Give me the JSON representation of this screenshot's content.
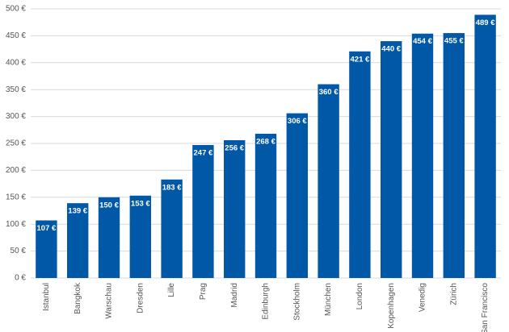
{
  "chart_data": {
    "type": "bar",
    "categories": [
      "Istanbul",
      "Bangkok",
      "Warschau",
      "Dresden",
      "Lille",
      "Prag",
      "Madrid",
      "Edinburgh",
      "Stockholm",
      "München",
      "London",
      "Kopenhagen",
      "Venedig",
      "Zürich",
      "San Francisco"
    ],
    "values": [
      107,
      139,
      150,
      153,
      183,
      247,
      256,
      268,
      306,
      360,
      421,
      440,
      454,
      455,
      489
    ],
    "value_labels": [
      "107 €",
      "139 €",
      "150 €",
      "153 €",
      "183 €",
      "247 €",
      "256 €",
      "268 €",
      "306 €",
      "360 €",
      "421 €",
      "440 €",
      "454 €",
      "455 €",
      "489 €"
    ],
    "color": "#0058a6",
    "ylim": [
      0,
      500
    ],
    "yticks": [
      {
        "value": 0,
        "label": "0 €"
      },
      {
        "value": 50,
        "label": "50 €"
      },
      {
        "value": 100,
        "label": "100 €"
      },
      {
        "value": 150,
        "label": "150 €"
      },
      {
        "value": 200,
        "label": "200 €"
      },
      {
        "value": 250,
        "label": "250 €"
      },
      {
        "value": 300,
        "label": "300 €"
      },
      {
        "value": 350,
        "label": "350 €"
      },
      {
        "value": 400,
        "label": "400 €"
      },
      {
        "value": 450,
        "label": "450 €"
      },
      {
        "value": 500,
        "label": "500 €"
      }
    ],
    "grid": true
  }
}
